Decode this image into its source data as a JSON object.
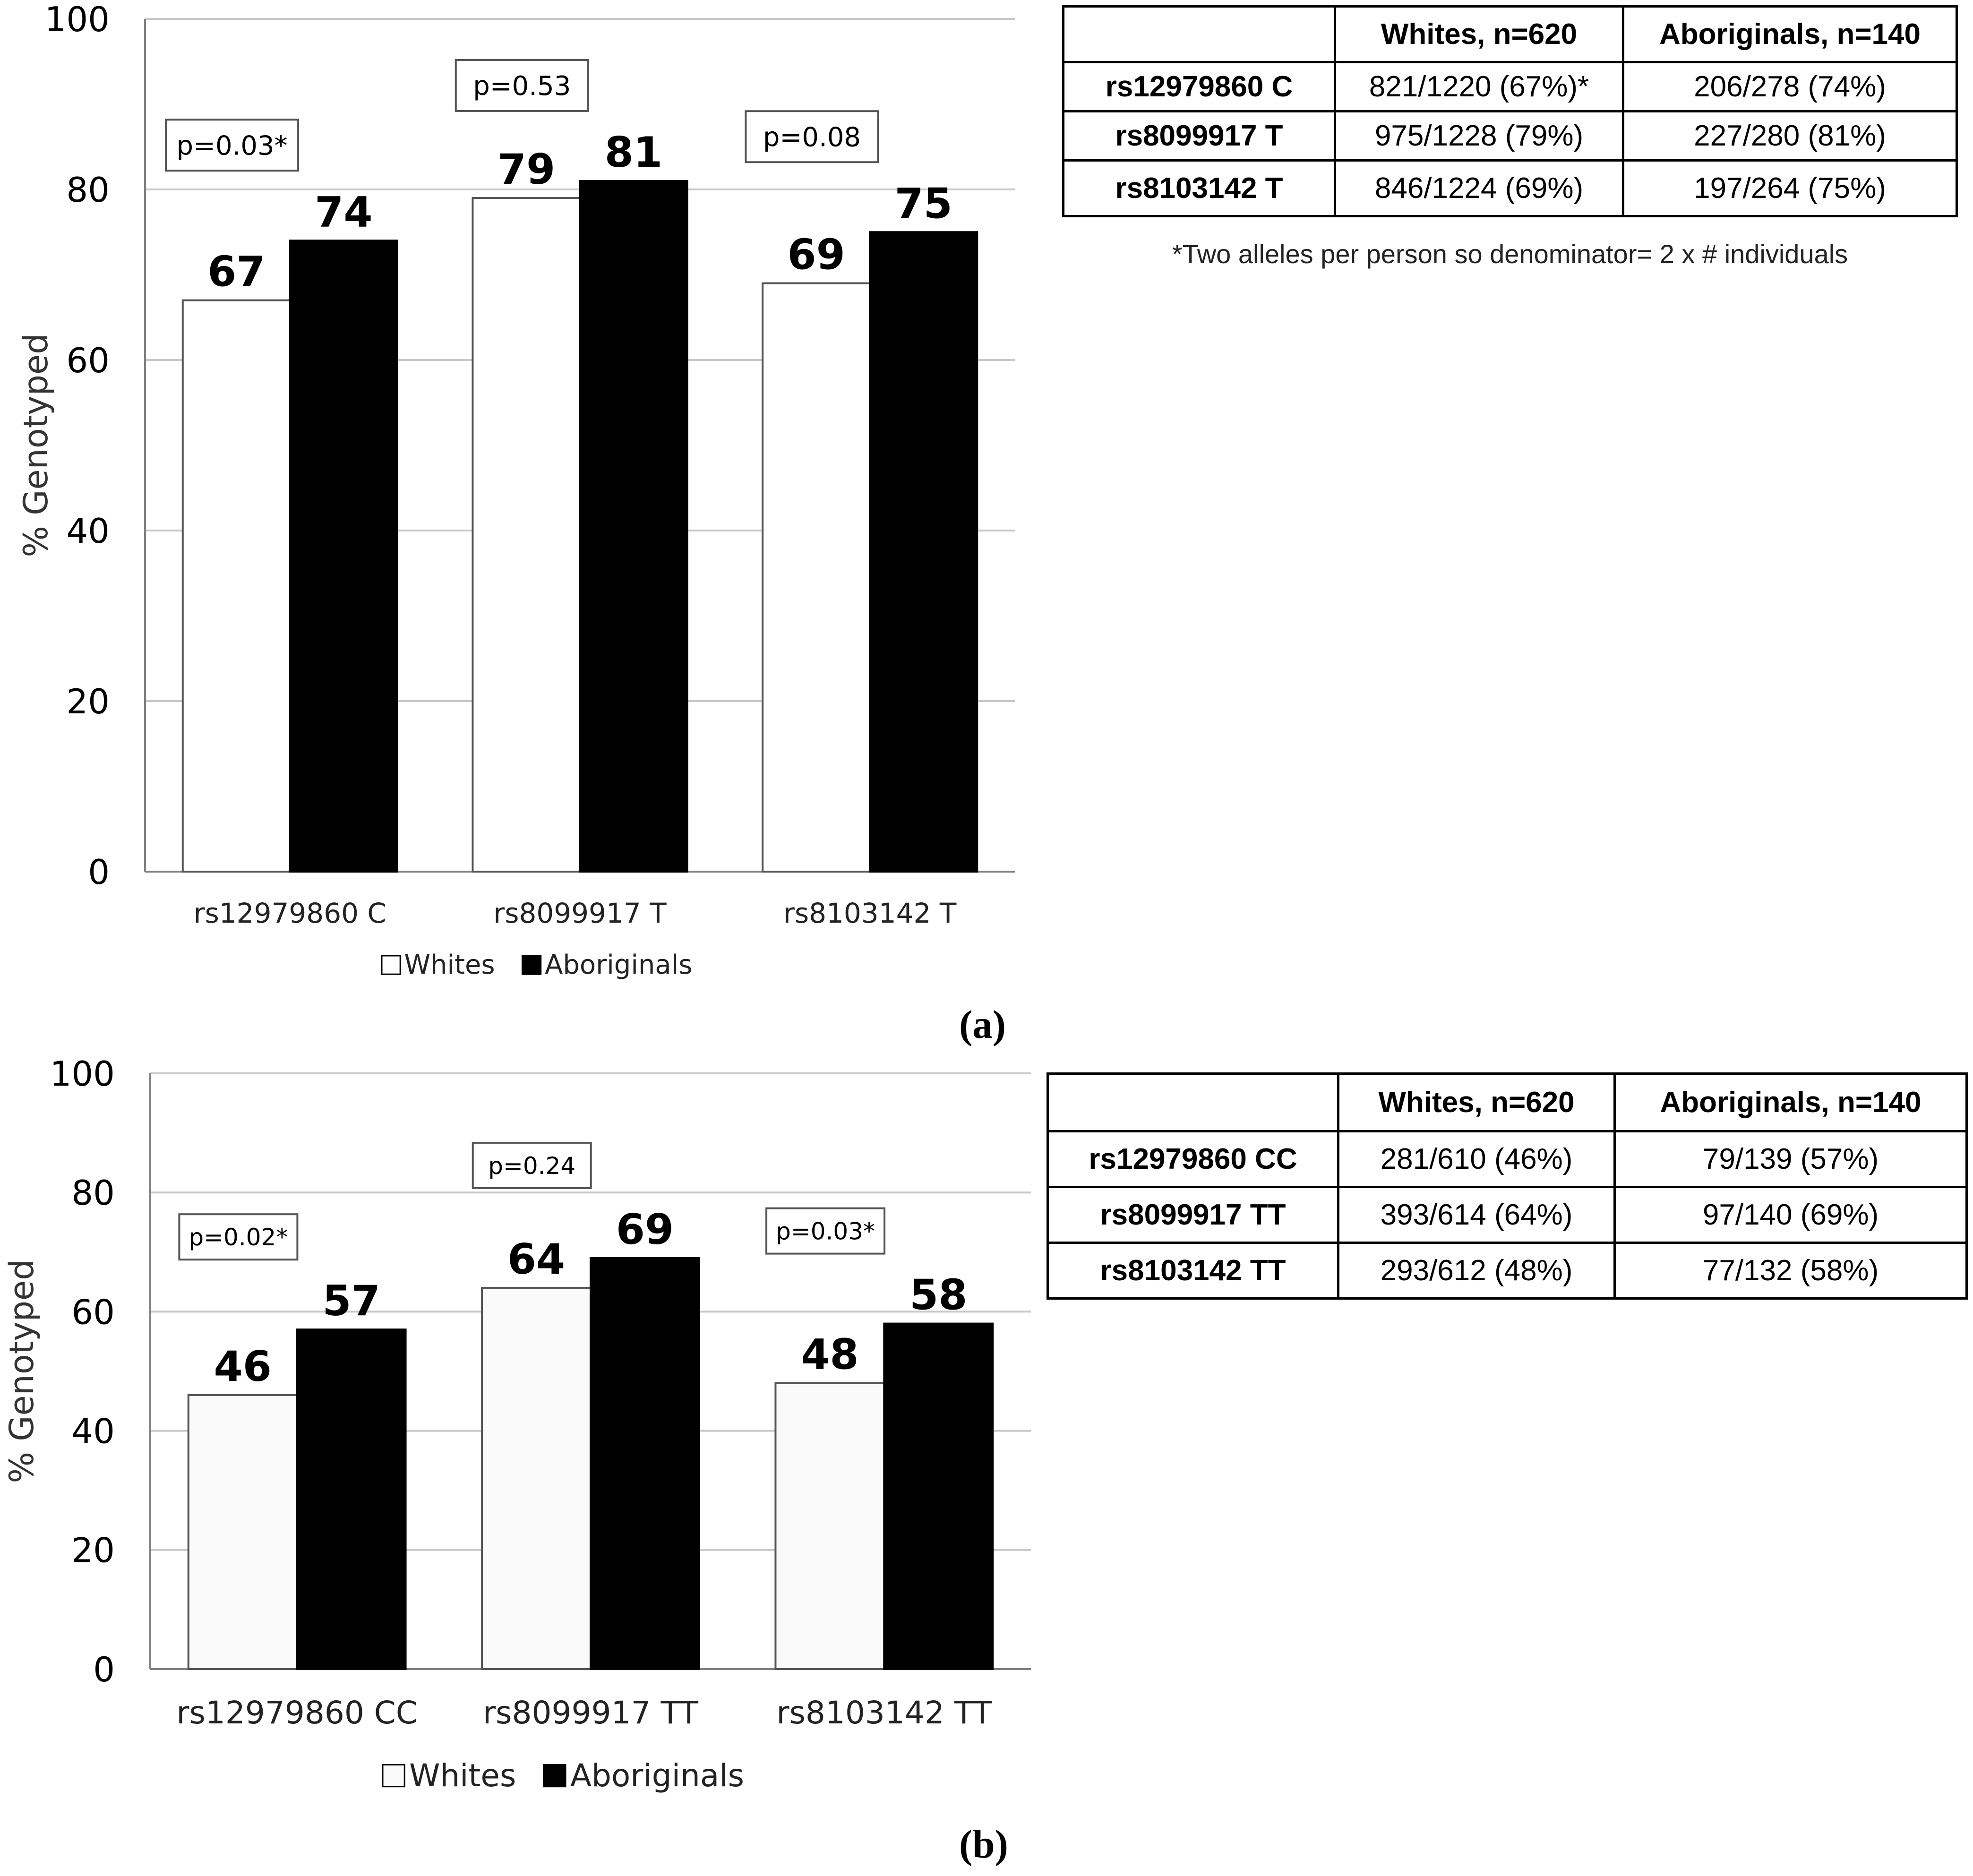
{
  "chart_data": [
    {
      "type": "bar",
      "panel": "(a)",
      "categories": [
        "rs12979860 C",
        "rs8099917 T",
        "rs8103142 T"
      ],
      "series": [
        {
          "name": "Whites",
          "values": [
            67,
            79,
            69
          ],
          "color": "#ffffff"
        },
        {
          "name": "Aboriginals",
          "values": [
            74,
            81,
            75
          ],
          "color": "#000000"
        }
      ],
      "pvalues": [
        "p=0.03*",
        "p=0.53",
        "p=0.08"
      ],
      "ylabel": "% Genotyped",
      "ylim": [
        0,
        100
      ],
      "yticks": [
        0,
        20,
        40,
        60,
        80,
        100
      ],
      "grid": true,
      "legend": "bottom"
    },
    {
      "type": "bar",
      "panel": "(b)",
      "categories": [
        "rs12979860 CC",
        "rs8099917 TT",
        "rs8103142 TT"
      ],
      "series": [
        {
          "name": "Whites",
          "values": [
            46,
            64,
            48
          ],
          "color": "#fafafa"
        },
        {
          "name": "Aboriginals",
          "values": [
            57,
            69,
            58
          ],
          "color": "#000000"
        }
      ],
      "pvalues": [
        "p=0.02*",
        "p=0.24",
        "p=0.03*"
      ],
      "ylabel": "% Genotyped",
      "ylim": [
        0,
        100
      ],
      "yticks": [
        0,
        20,
        40,
        60,
        80,
        100
      ],
      "grid": true,
      "legend": "bottom"
    }
  ],
  "tables": [
    {
      "headers": [
        "",
        "Whites, n=620",
        "Aboriginals, n=140"
      ],
      "rows": [
        [
          "rs12979860 C",
          "821/1220 (67%)*",
          "206/278 (74%)"
        ],
        [
          "rs8099917 T",
          "975/1228 (79%)",
          "227/280 (81%)"
        ],
        [
          "rs8103142 T",
          "846/1224 (69%)",
          "197/264 (75%)"
        ]
      ],
      "footnote": "*Two alleles per person so denominator= 2 x # individuals"
    },
    {
      "headers": [
        "",
        "Whites, n=620",
        "Aboriginals, n=140"
      ],
      "rows": [
        [
          "rs12979860 CC",
          "281/610 (46%)",
          "79/139 (57%)"
        ],
        [
          "rs8099917 TT",
          "393/614 (64%)",
          "97/140 (69%)"
        ],
        [
          "rs8103142 TT",
          "293/612 (48%)",
          "77/132 (58%)"
        ]
      ]
    }
  ],
  "panel_labels": [
    "(a)",
    "(b)"
  ]
}
